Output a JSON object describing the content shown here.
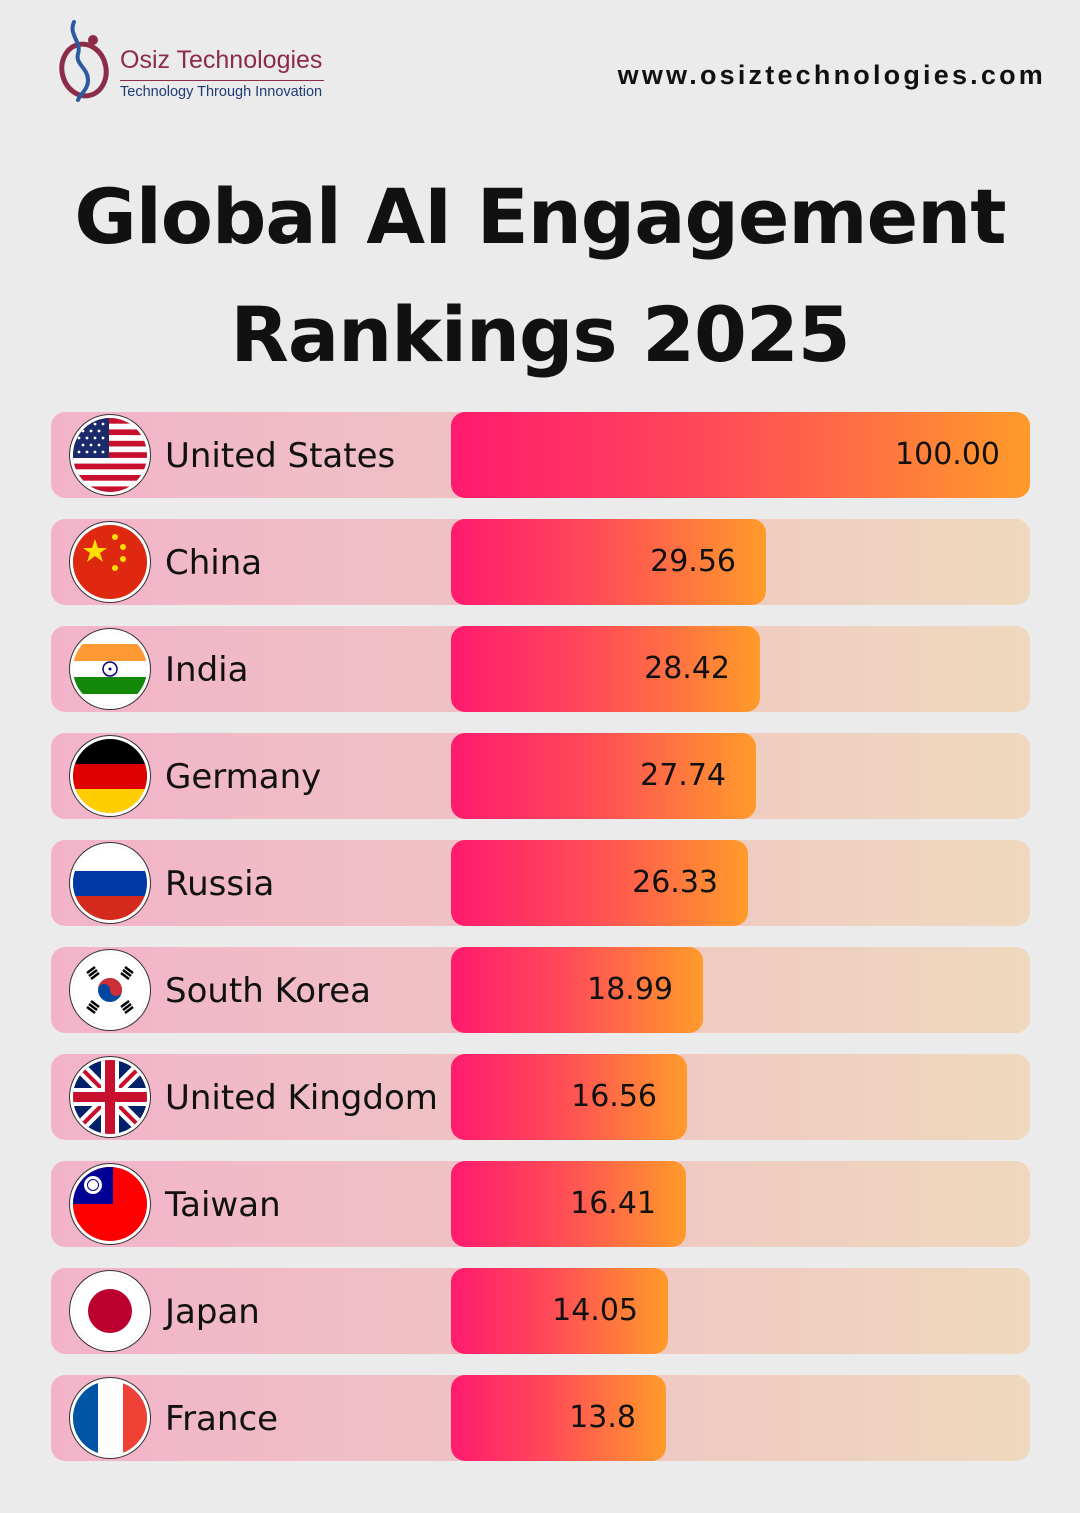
{
  "header": {
    "brand_name": "Osiz Technologies",
    "brand_tagline": "Technology Through Innovation",
    "website": "www.osiztechnologies.com"
  },
  "title_line1": "Global AI Engagement",
  "title_line2": "Rankings 2025",
  "colors": {
    "bar_start": "#ff1a6e",
    "bar_end": "#ff9b2a",
    "row_bg_start": "#f2b3c9",
    "row_bg_end": "#efd8bd",
    "brand": "#8b2c49"
  },
  "chart_data": {
    "type": "bar",
    "orientation": "horizontal",
    "title": "Global AI Engagement Rankings 2025",
    "categories": [
      "United States",
      "China",
      "India",
      "Germany",
      "Russia",
      "South Korea",
      "United Kingdom",
      "Taiwan",
      "Japan",
      "France"
    ],
    "values": [
      100.0,
      29.56,
      28.42,
      27.74,
      26.33,
      18.99,
      16.56,
      16.41,
      14.05,
      13.8
    ],
    "value_labels": [
      "100.00",
      "29.56",
      "28.42",
      "27.74",
      "26.33",
      "18.99",
      "16.56",
      "16.41",
      "14.05",
      "13.8"
    ],
    "flags": [
      "us-flag-icon",
      "china-flag-icon",
      "india-flag-icon",
      "germany-flag-icon",
      "russia-flag-icon",
      "south-korea-flag-icon",
      "uk-flag-icon",
      "taiwan-flag-icon",
      "japan-flag-icon",
      "france-flag-icon"
    ],
    "xlim": [
      0,
      100
    ]
  }
}
